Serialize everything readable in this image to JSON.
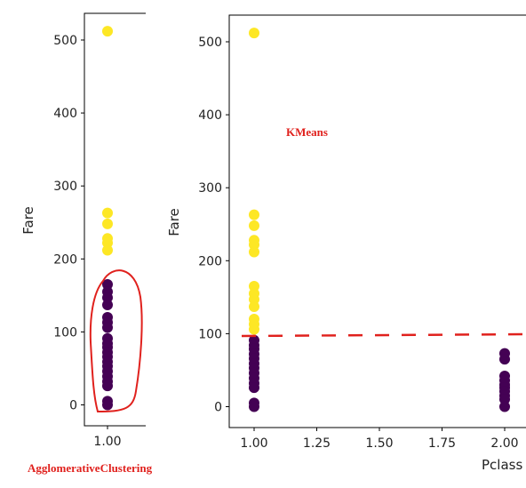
{
  "colors": {
    "cluster_high": "#fde725",
    "cluster_low": "#440154",
    "annotation": "#e0211d",
    "axis": "#000000"
  },
  "chart_data": [
    {
      "type": "scatter",
      "title": "",
      "xlabel": "",
      "ylabel": "Fare",
      "xlim": [
        0.9,
        1.2
      ],
      "ylim": [
        -25,
        540
      ],
      "xticks": [
        1.0
      ],
      "xtick_labels": [
        "1.00"
      ],
      "yticks": [
        0,
        100,
        200,
        300,
        400,
        500
      ],
      "ytick_labels": [
        "0",
        "100",
        "200",
        "300",
        "400",
        "500"
      ],
      "series": [
        {
          "cluster": 1,
          "color": "#fde725",
          "points": [
            [
              1,
              512
            ],
            [
              1,
              263
            ],
            [
              1,
              248
            ],
            [
              1,
              228
            ],
            [
              1,
              222
            ],
            [
              1,
              212
            ]
          ]
        },
        {
          "cluster": 0,
          "color": "#440154",
          "points": [
            [
              1,
              165
            ],
            [
              1,
              155
            ],
            [
              1,
              147
            ],
            [
              1,
              137
            ],
            [
              1,
              120
            ],
            [
              1,
              113
            ],
            [
              1,
              106
            ],
            [
              1,
              91
            ],
            [
              1,
              84
            ],
            [
              1,
              79
            ],
            [
              1,
              72
            ],
            [
              1,
              66
            ],
            [
              1,
              59
            ],
            [
              1,
              53
            ],
            [
              1,
              46
            ],
            [
              1,
              39
            ],
            [
              1,
              32
            ],
            [
              1,
              26
            ],
            [
              1,
              5
            ],
            [
              1,
              0
            ]
          ]
        }
      ],
      "annotations": [
        {
          "text": "AgglomerativeClustering",
          "kind": "label"
        },
        {
          "kind": "hand-drawn-loop",
          "color": "#e0211d"
        }
      ]
    },
    {
      "type": "scatter",
      "title": "",
      "xlabel": "Pclass",
      "ylabel": "Fare",
      "xlim": [
        0.9,
        2.1
      ],
      "ylim": [
        -25,
        540
      ],
      "xticks": [
        1.0,
        1.25,
        1.5,
        1.75,
        2.0
      ],
      "xtick_labels": [
        "1.00",
        "1.25",
        "1.50",
        "1.75",
        "2.00"
      ],
      "yticks": [
        0,
        100,
        200,
        300,
        400,
        500
      ],
      "ytick_labels": [
        "0",
        "100",
        "200",
        "300",
        "400",
        "500"
      ],
      "series": [
        {
          "cluster": 1,
          "color": "#fde725",
          "points": [
            [
              1,
              512
            ],
            [
              1,
              263
            ],
            [
              1,
              248
            ],
            [
              1,
              228
            ],
            [
              1,
              222
            ],
            [
              1,
              212
            ],
            [
              1,
              165
            ],
            [
              1,
              155
            ],
            [
              1,
              147
            ],
            [
              1,
              137
            ],
            [
              1,
              120
            ],
            [
              1,
              113
            ],
            [
              1,
              106
            ]
          ]
        },
        {
          "cluster": 0,
          "color": "#440154",
          "points": [
            [
              1,
              91
            ],
            [
              1,
              84
            ],
            [
              1,
              79
            ],
            [
              1,
              72
            ],
            [
              1,
              66
            ],
            [
              1,
              59
            ],
            [
              1,
              53
            ],
            [
              1,
              46
            ],
            [
              1,
              39
            ],
            [
              1,
              32
            ],
            [
              1,
              26
            ],
            [
              1,
              5
            ],
            [
              1,
              0
            ],
            [
              2,
              73
            ],
            [
              2,
              65
            ],
            [
              2,
              42
            ],
            [
              2,
              36
            ],
            [
              2,
              30
            ],
            [
              2,
              26
            ],
            [
              2,
              21
            ],
            [
              2,
              15
            ],
            [
              2,
              10
            ],
            [
              2,
              0
            ]
          ]
        }
      ],
      "annotations": [
        {
          "text": "KMeans",
          "kind": "label"
        },
        {
          "kind": "dashed-line",
          "color": "#e0211d",
          "y": 99
        }
      ]
    }
  ]
}
